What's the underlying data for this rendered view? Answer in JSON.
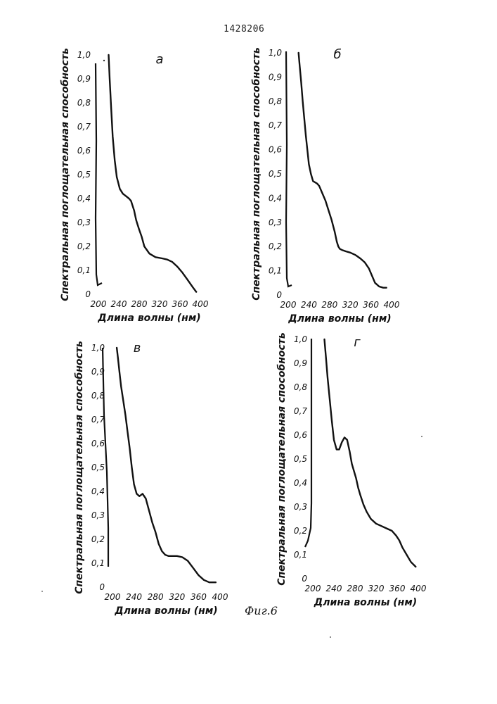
{
  "document": {
    "patent_number": "1428206",
    "figure_caption": "Фиг.6"
  },
  "colors": {
    "ink": "#111111",
    "paper": "#ffffff"
  },
  "chart_data": [
    {
      "type": "line",
      "panel_label": "а",
      "xlabel": "Длина волны (нм)",
      "ylabel": "Спектральная поглощательная способность",
      "xlim": [
        200,
        400
      ],
      "ylim": [
        0,
        1.0
      ],
      "xticks": [
        "200",
        "240",
        "280",
        "320",
        "360",
        "400"
      ],
      "yticks": [
        "0",
        "0,1",
        "0,2",
        "0,3",
        "0,4",
        "0,5",
        "0,6",
        "0,7",
        "0,8",
        "0,9",
        "1,0"
      ],
      "series": [
        {
          "x": [
            220,
            222,
            225,
            228,
            232,
            236,
            242,
            248,
            254,
            260,
            264,
            267,
            270,
            272,
            274,
            277,
            280,
            285,
            290,
            300,
            312,
            325,
            335,
            345,
            355,
            365,
            375,
            385,
            392
          ],
          "y": [
            1.0,
            0.9,
            0.78,
            0.66,
            0.56,
            0.49,
            0.44,
            0.42,
            0.41,
            0.4,
            0.39,
            0.37,
            0.35,
            0.33,
            0.31,
            0.29,
            0.27,
            0.24,
            0.2,
            0.17,
            0.155,
            0.15,
            0.145,
            0.135,
            0.115,
            0.09,
            0.06,
            0.03,
            0.01
          ]
        }
      ]
    },
    {
      "type": "line",
      "panel_label": "б",
      "xlabel": "Длина волны (нм)",
      "ylabel": "Спектральная поглощательная способность",
      "xlim": [
        200,
        400
      ],
      "ylim": [
        0,
        1.0
      ],
      "xticks": [
        "200",
        "240",
        "280",
        "320",
        "360",
        "400"
      ],
      "yticks": [
        "0",
        "0,1",
        "0,2",
        "0,3",
        "0,4",
        "0,5",
        "0,6",
        "0,7",
        "0,8",
        "0,9",
        "1,0"
      ],
      "series": [
        {
          "x": [
            220,
            222,
            225,
            228,
            231,
            234,
            237,
            240,
            244,
            248,
            252,
            256,
            260,
            266,
            272,
            278,
            284,
            290,
            294,
            297,
            300,
            305,
            312,
            320,
            330,
            340,
            348,
            356,
            362,
            368,
            376,
            384,
            390
          ],
          "y": [
            1.0,
            0.95,
            0.88,
            0.8,
            0.73,
            0.66,
            0.6,
            0.54,
            0.5,
            0.47,
            0.465,
            0.46,
            0.45,
            0.42,
            0.39,
            0.35,
            0.31,
            0.26,
            0.22,
            0.2,
            0.19,
            0.185,
            0.18,
            0.175,
            0.165,
            0.15,
            0.135,
            0.11,
            0.08,
            0.05,
            0.035,
            0.03,
            0.03
          ]
        }
      ]
    },
    {
      "type": "line",
      "panel_label": "в",
      "xlabel": "Длина волны (нм)",
      "ylabel": "Спектральная поглощательная способность",
      "xlim": [
        200,
        400
      ],
      "ylim": [
        0,
        1.0
      ],
      "xticks": [
        "200",
        "240",
        "280",
        "320",
        "360",
        "400"
      ],
      "yticks": [
        "0",
        "0,1",
        "0,2",
        "0,3",
        "0,4",
        "0,5",
        "0,6",
        "0,7",
        "0,8",
        "0,9",
        "1,0"
      ],
      "series": [
        {
          "x": [
            208,
            210,
            213,
            216,
            220,
            224,
            228,
            232,
            236,
            240,
            245,
            250,
            256,
            262,
            268,
            274,
            280,
            286,
            292,
            298,
            304,
            312,
            320,
            330,
            340,
            350,
            360,
            370,
            380,
            392
          ],
          "y": [
            1.0,
            0.96,
            0.9,
            0.84,
            0.78,
            0.72,
            0.65,
            0.58,
            0.5,
            0.43,
            0.39,
            0.38,
            0.39,
            0.37,
            0.32,
            0.27,
            0.23,
            0.18,
            0.15,
            0.135,
            0.13,
            0.13,
            0.13,
            0.125,
            0.11,
            0.08,
            0.05,
            0.03,
            0.02,
            0.02
          ]
        }
      ]
    },
    {
      "type": "line",
      "panel_label": "г",
      "xlabel": "Длина волны (нм)",
      "ylabel": "Спектральная поглощательная способность",
      "xlim": [
        200,
        400
      ],
      "ylim": [
        0,
        1.0
      ],
      "xticks": [
        "200",
        "240",
        "280",
        "320",
        "360",
        "400"
      ],
      "yticks": [
        "0",
        "0,1",
        "0,2",
        "0,3",
        "0,4",
        "0,5",
        "0,6",
        "0,7",
        "0,8",
        "0,9",
        "1,0"
      ],
      "series": [
        {
          "x": [
            222,
            225,
            228,
            232,
            236,
            240,
            245,
            250,
            255,
            260,
            265,
            270,
            274,
            278,
            282,
            286,
            290,
            296,
            302,
            310,
            320,
            330,
            340,
            350,
            358,
            364,
            370,
            378,
            386,
            395
          ],
          "y": [
            1.0,
            0.92,
            0.84,
            0.75,
            0.66,
            0.58,
            0.54,
            0.54,
            0.57,
            0.59,
            0.58,
            0.53,
            0.48,
            0.45,
            0.42,
            0.38,
            0.35,
            0.31,
            0.28,
            0.25,
            0.23,
            0.22,
            0.21,
            0.2,
            0.18,
            0.16,
            0.13,
            0.1,
            0.07,
            0.05
          ]
        }
      ]
    }
  ]
}
